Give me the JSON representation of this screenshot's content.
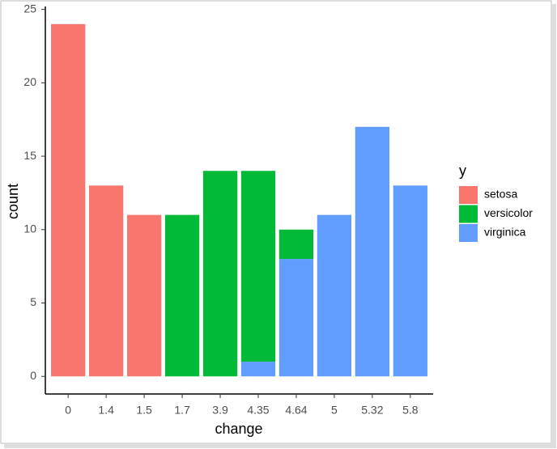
{
  "chart_data": {
    "type": "stacked_bar",
    "x_label": "change",
    "y_label": "count",
    "legend_title": "y",
    "categories": [
      "0",
      "1.4",
      "1.5",
      "1.7",
      "3.9",
      "4.35",
      "4.64",
      "5",
      "5.32",
      "5.8"
    ],
    "series": [
      {
        "name": "setosa",
        "color": "#f8766d",
        "values": [
          24,
          13,
          11,
          0,
          0,
          0,
          0,
          0,
          0,
          0
        ]
      },
      {
        "name": "versicolor",
        "color": "#00ba38",
        "values": [
          0,
          0,
          0,
          11,
          14,
          13,
          2,
          0,
          0,
          0
        ]
      },
      {
        "name": "virginica",
        "color": "#619cff",
        "values": [
          0,
          0,
          0,
          0,
          0,
          1,
          8,
          11,
          17,
          13
        ]
      }
    ],
    "ylim": [
      -1.2,
      25.2
    ],
    "yticks": [
      0,
      5,
      10,
      15,
      20,
      25
    ],
    "grid": false,
    "legend": "right"
  }
}
